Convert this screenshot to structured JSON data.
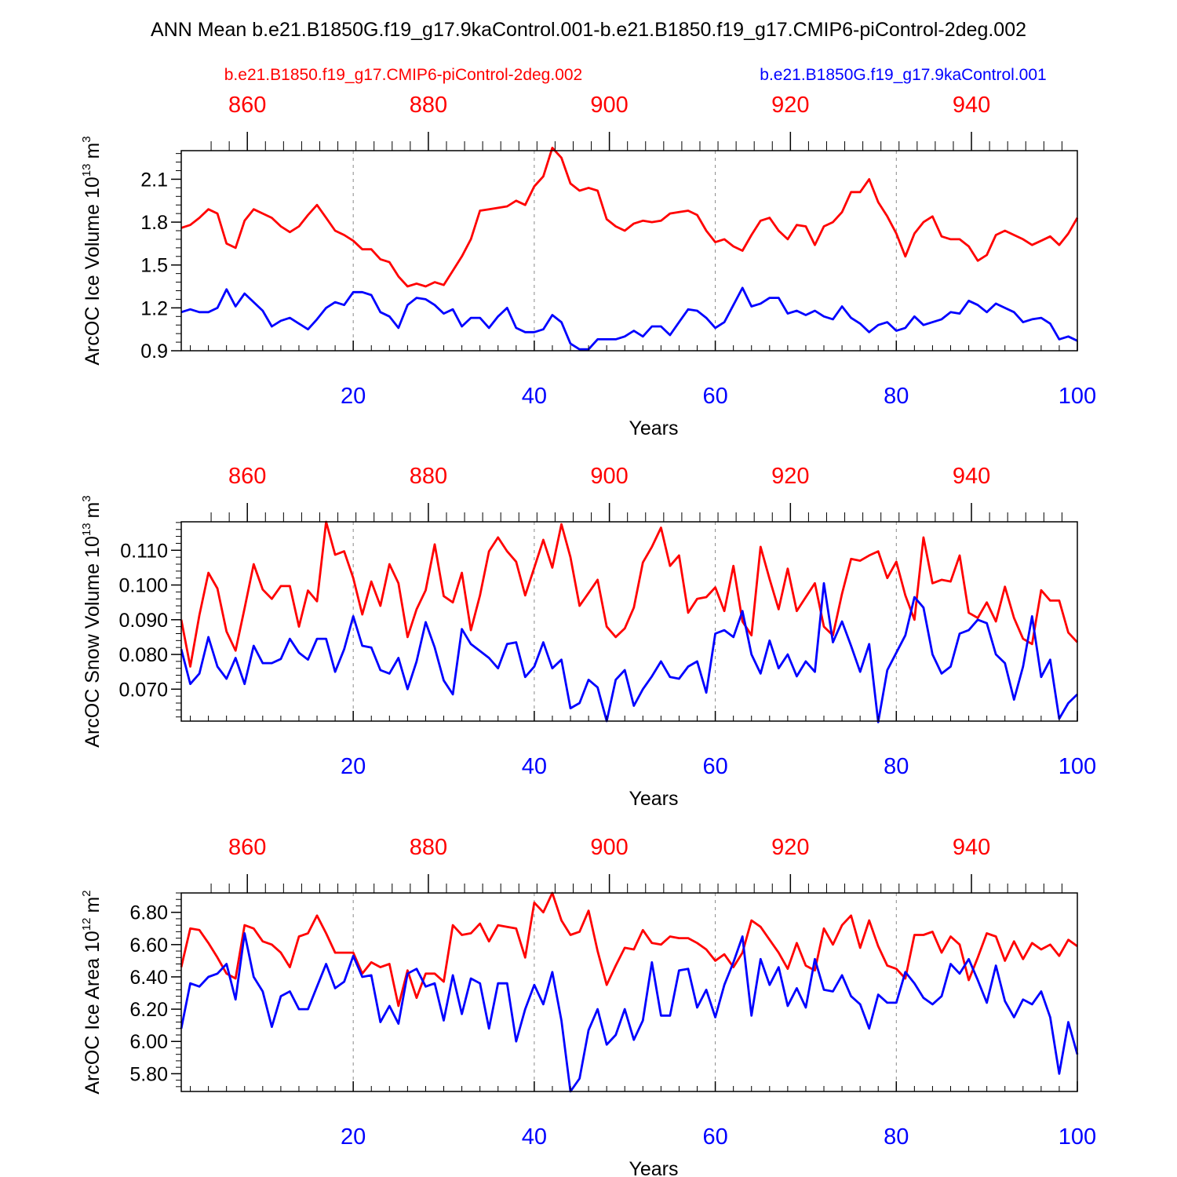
{
  "title": "ANN Mean b.e21.B1850G.f19_g17.9kaControl.001-b.e21.B1850.f19_g17.CMIP6-piControl-2deg.002",
  "legend": {
    "red_label": "b.e21.B1850.f19_g17.CMIP6-piControl-2deg.002",
    "blue_label": "b.e21.B1850G.f19_g17.9kaControl.001"
  },
  "colors": {
    "red": "#ff0000",
    "blue": "#0000ff",
    "axis": "#000000",
    "grid": "#888888"
  },
  "chart_data": [
    {
      "type": "line",
      "ylabel": "ArcOC Ice Volume 10^13 m^3",
      "ylabel_main": "ArcOC Ice Volume 10",
      "ylabel_exp": "13",
      "ylabel_unit": "m",
      "ylabel_unit_exp": "3",
      "xlabel": "Years",
      "xlim": [
        1,
        100
      ],
      "ylim": [
        0.9,
        2.3
      ],
      "yticks": [
        0.9,
        1.2,
        1.5,
        1.8,
        2.1
      ],
      "ytick_labels": [
        "0.9",
        "1.2",
        "1.5",
        "1.8",
        "2.1"
      ],
      "yminor_step": 0.06,
      "xticks": [
        20,
        40,
        60,
        80,
        100
      ],
      "xtick_labels": [
        "20",
        "40",
        "60",
        "80",
        "100"
      ],
      "top_xlim": [
        1,
        100
      ],
      "top_ticks": [
        8.3,
        28.3,
        48.3,
        68.3,
        88.3
      ],
      "top_tick_labels": [
        "860",
        "880",
        "900",
        "920",
        "940"
      ],
      "grid_x": [
        20,
        40,
        60,
        80
      ],
      "series": [
        {
          "name": "b.e21.B1850.f19_g17.CMIP6-piControl-2deg.002",
          "color": "red",
          "values": [
            1.76,
            1.78,
            1.83,
            1.89,
            1.86,
            1.65,
            1.62,
            1.81,
            1.89,
            1.86,
            1.83,
            1.77,
            1.73,
            1.77,
            1.85,
            1.92,
            1.83,
            1.74,
            1.71,
            1.67,
            1.61,
            1.61,
            1.54,
            1.52,
            1.42,
            1.35,
            1.37,
            1.35,
            1.38,
            1.36,
            1.46,
            1.56,
            1.68,
            1.88,
            1.89,
            1.9,
            1.91,
            1.95,
            1.92,
            2.05,
            2.12,
            2.32,
            2.25,
            2.07,
            2.02,
            2.04,
            2.02,
            1.82,
            1.77,
            1.74,
            1.79,
            1.81,
            1.8,
            1.81,
            1.86,
            1.87,
            1.88,
            1.85,
            1.74,
            1.66,
            1.68,
            1.63,
            1.6,
            1.71,
            1.81,
            1.83,
            1.74,
            1.68,
            1.78,
            1.77,
            1.64,
            1.77,
            1.8,
            1.87,
            2.01,
            2.01,
            2.1,
            1.94,
            1.84,
            1.72,
            1.56,
            1.72,
            1.8,
            1.84,
            1.7,
            1.68,
            1.68,
            1.63,
            1.53,
            1.57,
            1.71,
            1.74,
            1.71,
            1.68,
            1.64,
            1.67,
            1.7,
            1.64,
            1.72,
            1.83
          ]
        },
        {
          "name": "b.e21.B1850G.f19_g17.9kaControl.001",
          "color": "blue",
          "values": [
            1.17,
            1.19,
            1.17,
            1.17,
            1.2,
            1.33,
            1.21,
            1.3,
            1.24,
            1.18,
            1.07,
            1.11,
            1.13,
            1.09,
            1.05,
            1.12,
            1.2,
            1.24,
            1.22,
            1.31,
            1.31,
            1.29,
            1.17,
            1.14,
            1.06,
            1.22,
            1.27,
            1.26,
            1.22,
            1.16,
            1.19,
            1.07,
            1.13,
            1.13,
            1.06,
            1.14,
            1.2,
            1.06,
            1.03,
            1.03,
            1.05,
            1.15,
            1.1,
            0.95,
            0.91,
            0.91,
            0.98,
            0.98,
            0.98,
            1.0,
            1.04,
            1.0,
            1.07,
            1.07,
            1.01,
            1.1,
            1.19,
            1.18,
            1.13,
            1.06,
            1.1,
            1.22,
            1.34,
            1.21,
            1.23,
            1.27,
            1.27,
            1.16,
            1.18,
            1.15,
            1.18,
            1.14,
            1.12,
            1.21,
            1.13,
            1.09,
            1.03,
            1.08,
            1.1,
            1.04,
            1.06,
            1.14,
            1.08,
            1.1,
            1.12,
            1.17,
            1.16,
            1.25,
            1.22,
            1.17,
            1.23,
            1.2,
            1.17,
            1.1,
            1.12,
            1.13,
            1.09,
            0.98,
            1.0,
            0.97
          ]
        }
      ]
    },
    {
      "type": "line",
      "ylabel": "ArcOC Snow Volume 10^13 m^3",
      "ylabel_main": "ArcOC Snow Volume 10",
      "ylabel_exp": "13",
      "ylabel_unit": "m",
      "ylabel_unit_exp": "3",
      "xlabel": "Years",
      "xlim": [
        1,
        100
      ],
      "ylim": [
        0.0608,
        0.1182
      ],
      "yticks": [
        0.07,
        0.08,
        0.09,
        0.1,
        0.11
      ],
      "ytick_labels": [
        "0.070",
        "0.080",
        "0.090",
        "0.100",
        "0.110"
      ],
      "yminor_step": 0.002,
      "xticks": [
        20,
        40,
        60,
        80,
        100
      ],
      "xtick_labels": [
        "20",
        "40",
        "60",
        "80",
        "100"
      ],
      "top_xlim": [
        1,
        100
      ],
      "top_ticks": [
        8.3,
        28.3,
        48.3,
        68.3,
        88.3
      ],
      "top_tick_labels": [
        "860",
        "880",
        "900",
        "920",
        "940"
      ],
      "grid_x": [
        20,
        40,
        60,
        80
      ],
      "series": [
        {
          "name": "b.e21.B1850.f19_g17.CMIP6-piControl-2deg.002",
          "color": "red",
          "values": [
            0.09,
            0.0765,
            0.0913,
            0.1035,
            0.099,
            0.0866,
            0.0811,
            0.0933,
            0.106,
            0.0987,
            0.096,
            0.0997,
            0.0997,
            0.088,
            0.0984,
            0.0953,
            0.1182,
            0.1087,
            0.1097,
            0.102,
            0.0915,
            0.101,
            0.094,
            0.106,
            0.1005,
            0.085,
            0.093,
            0.0985,
            0.1117,
            0.0968,
            0.095,
            0.1035,
            0.087,
            0.097,
            0.1097,
            0.1137,
            0.1097,
            0.1067,
            0.097,
            0.105,
            0.113,
            0.105,
            0.1175,
            0.108,
            0.094,
            0.0977,
            0.1015,
            0.088,
            0.085,
            0.0875,
            0.0935,
            0.1065,
            0.111,
            0.1165,
            0.1055,
            0.1085,
            0.092,
            0.096,
            0.0965,
            0.0993,
            0.0925,
            0.1055,
            0.0895,
            0.0855,
            0.111,
            0.1017,
            0.093,
            0.1047,
            0.0925,
            0.0965,
            0.1005,
            0.088,
            0.0855,
            0.0975,
            0.1075,
            0.107,
            0.1085,
            0.1097,
            0.102,
            0.1067,
            0.097,
            0.09,
            0.1137,
            0.1005,
            0.1015,
            0.101,
            0.1085,
            0.092,
            0.0905,
            0.095,
            0.0895,
            0.0995,
            0.0905,
            0.0845,
            0.083,
            0.0985,
            0.0955,
            0.0955,
            0.0863,
            0.0835
          ]
        },
        {
          "name": "b.e21.B1850G.f19_g17.9kaControl.001",
          "color": "blue",
          "values": [
            0.0815,
            0.0715,
            0.0745,
            0.085,
            0.0765,
            0.073,
            0.079,
            0.0715,
            0.0825,
            0.0775,
            0.0775,
            0.0787,
            0.0845,
            0.0805,
            0.0785,
            0.0845,
            0.0845,
            0.075,
            0.0815,
            0.091,
            0.0825,
            0.082,
            0.0755,
            0.0745,
            0.079,
            0.07,
            0.078,
            0.0893,
            0.082,
            0.0725,
            0.0685,
            0.0873,
            0.083,
            0.081,
            0.079,
            0.076,
            0.083,
            0.0835,
            0.0735,
            0.0765,
            0.0835,
            0.076,
            0.0785,
            0.0645,
            0.066,
            0.0727,
            0.0705,
            0.0608,
            0.0727,
            0.0755,
            0.0652,
            0.07,
            0.0737,
            0.078,
            0.0735,
            0.073,
            0.0765,
            0.078,
            0.069,
            0.086,
            0.087,
            0.085,
            0.0925,
            0.08,
            0.0745,
            0.084,
            0.076,
            0.08,
            0.0737,
            0.078,
            0.075,
            0.1005,
            0.0835,
            0.0895,
            0.0825,
            0.075,
            0.083,
            0.0605,
            0.0755,
            0.0805,
            0.0855,
            0.0965,
            0.0935,
            0.08,
            0.0745,
            0.0765,
            0.086,
            0.087,
            0.09,
            0.089,
            0.08,
            0.0775,
            0.067,
            0.0765,
            0.091,
            0.0735,
            0.0785,
            0.0615,
            0.066,
            0.0685
          ]
        }
      ]
    },
    {
      "type": "line",
      "ylabel": "ArcOC Ice Area 10^12 m^2",
      "ylabel_main": "ArcOC Ice Area 10",
      "ylabel_exp": "12",
      "ylabel_unit": "m",
      "ylabel_unit_exp": "2",
      "xlabel": "Years",
      "xlim": [
        1,
        100
      ],
      "ylim": [
        5.69,
        6.92
      ],
      "yticks": [
        5.8,
        6.0,
        6.2,
        6.4,
        6.6,
        6.8
      ],
      "ytick_labels": [
        "5.80",
        "6.00",
        "6.20",
        "6.40",
        "6.60",
        "6.80"
      ],
      "yminor_step": 0.04,
      "xticks": [
        20,
        40,
        60,
        80,
        100
      ],
      "xtick_labels": [
        "20",
        "40",
        "60",
        "80",
        "100"
      ],
      "top_xlim": [
        1,
        100
      ],
      "top_ticks": [
        8.3,
        28.3,
        48.3,
        68.3,
        88.3
      ],
      "top_tick_labels": [
        "860",
        "880",
        "900",
        "920",
        "940"
      ],
      "grid_x": [
        20,
        40,
        60,
        80
      ],
      "series": [
        {
          "name": "b.e21.B1850.f19_g17.CMIP6-piControl-2deg.002",
          "color": "red",
          "values": [
            6.46,
            6.7,
            6.69,
            6.61,
            6.52,
            6.42,
            6.39,
            6.72,
            6.7,
            6.62,
            6.6,
            6.55,
            6.46,
            6.65,
            6.67,
            6.78,
            6.67,
            6.55,
            6.55,
            6.55,
            6.42,
            6.49,
            6.46,
            6.48,
            6.22,
            6.44,
            6.27,
            6.42,
            6.42,
            6.37,
            6.72,
            6.66,
            6.67,
            6.73,
            6.62,
            6.72,
            6.71,
            6.7,
            6.52,
            6.86,
            6.8,
            6.92,
            6.75,
            6.66,
            6.68,
            6.81,
            6.56,
            6.35,
            6.47,
            6.58,
            6.57,
            6.69,
            6.61,
            6.6,
            6.65,
            6.64,
            6.64,
            6.61,
            6.57,
            6.5,
            6.54,
            6.46,
            6.55,
            6.75,
            6.71,
            6.63,
            6.55,
            6.45,
            6.61,
            6.47,
            6.44,
            6.7,
            6.6,
            6.72,
            6.78,
            6.58,
            6.75,
            6.59,
            6.47,
            6.45,
            6.39,
            6.66,
            6.66,
            6.68,
            6.55,
            6.65,
            6.6,
            6.38,
            6.52,
            6.67,
            6.65,
            6.5,
            6.62,
            6.51,
            6.61,
            6.57,
            6.6,
            6.53,
            6.63,
            6.59
          ]
        },
        {
          "name": "b.e21.B1850G.f19_g17.9kaControl.001",
          "color": "blue",
          "values": [
            6.08,
            6.36,
            6.34,
            6.4,
            6.42,
            6.48,
            6.26,
            6.67,
            6.4,
            6.31,
            6.09,
            6.28,
            6.31,
            6.2,
            6.2,
            6.34,
            6.48,
            6.33,
            6.37,
            6.53,
            6.4,
            6.41,
            6.12,
            6.22,
            6.11,
            6.42,
            6.45,
            6.34,
            6.36,
            6.13,
            6.41,
            6.17,
            6.39,
            6.36,
            6.08,
            6.36,
            6.36,
            6.0,
            6.2,
            6.35,
            6.23,
            6.43,
            6.13,
            5.69,
            5.77,
            6.07,
            6.2,
            5.98,
            6.04,
            6.2,
            6.01,
            6.13,
            6.49,
            6.16,
            6.16,
            6.44,
            6.45,
            6.21,
            6.32,
            6.15,
            6.35,
            6.49,
            6.65,
            6.16,
            6.51,
            6.35,
            6.46,
            6.22,
            6.33,
            6.21,
            6.51,
            6.32,
            6.31,
            6.41,
            6.28,
            6.23,
            6.08,
            6.29,
            6.24,
            6.24,
            6.43,
            6.36,
            6.27,
            6.23,
            6.28,
            6.48,
            6.42,
            6.51,
            6.38,
            6.24,
            6.47,
            6.25,
            6.15,
            6.26,
            6.23,
            6.31,
            6.15,
            5.8,
            6.12,
            5.92
          ]
        }
      ]
    }
  ]
}
